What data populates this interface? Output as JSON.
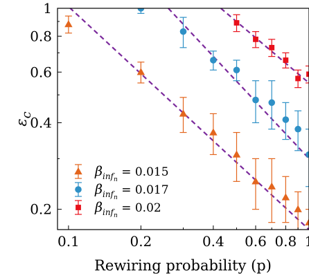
{
  "chart_data": {
    "type": "scatter",
    "title": "",
    "xlabel": "Rewiring probability (p)",
    "ylabel": "εc",
    "xscale": "log",
    "yscale": "log",
    "xlim": [
      0.09,
      1.0
    ],
    "ylim": [
      0.17,
      1.0
    ],
    "x_ticks": [
      0.1,
      0.2,
      0.4,
      0.6,
      0.8,
      1
    ],
    "x_tick_labels": [
      "0.1",
      "0.2",
      "0.4",
      "0.6",
      "0.8",
      "1"
    ],
    "y_ticks": [
      0.2,
      0.4,
      0.6,
      0.8,
      1
    ],
    "y_tick_labels": [
      "0.2",
      "0.4",
      "0.6",
      "0.8",
      "1"
    ],
    "grid": false,
    "legend_position": "bottom-left",
    "series": [
      {
        "name": "β_{inf_n} = 0.015",
        "legend_label": {
          "base": "β",
          "sub": "inf",
          "subsub": "n",
          "value": " = 0.015"
        },
        "color": "#e3651d",
        "marker": "triangle",
        "x": [
          0.1,
          0.2,
          0.3,
          0.4,
          0.5,
          0.6,
          0.7,
          0.8,
          0.9,
          1.0
        ],
        "y": [
          0.88,
          0.6,
          0.43,
          0.37,
          0.31,
          0.25,
          0.24,
          0.22,
          0.2,
          0.18
        ],
        "yerr": [
          0.06,
          0.05,
          0.06,
          0.06,
          0.06,
          0.05,
          0.06,
          0.04,
          0.03,
          0.02
        ],
        "fit": {
          "x": [
            0.09,
            1.0
          ],
          "y": [
            1.1,
            0.17
          ]
        }
      },
      {
        "name": "β_{inf_n} = 0.017",
        "legend_label": {
          "base": "β",
          "sub": "inf",
          "subsub": "n",
          "value": " = 0.017"
        },
        "color": "#2e90c6",
        "marker": "circle",
        "x": [
          0.2,
          0.3,
          0.4,
          0.5,
          0.6,
          0.7,
          0.8,
          0.9,
          1.0
        ],
        "y": [
          1.0,
          0.83,
          0.66,
          0.61,
          0.48,
          0.47,
          0.41,
          0.38,
          0.31
        ],
        "yerr": [
          0.04,
          0.1,
          0.05,
          0.05,
          0.08,
          0.09,
          0.06,
          0.06,
          0.07
        ],
        "fit": {
          "x": [
            0.26,
            1.0
          ],
          "y": [
            1.0,
            0.3
          ]
        }
      },
      {
        "name": "β_{inf_n} = 0.02",
        "legend_label": {
          "base": "β",
          "sub": "inf",
          "subsub": "n",
          "value": " = 0.02"
        },
        "color": "#e8101a",
        "marker": "square",
        "x": [
          0.5,
          0.6,
          0.7,
          0.8,
          0.9,
          1.0
        ],
        "y": [
          0.89,
          0.78,
          0.73,
          0.66,
          0.57,
          0.59
        ],
        "yerr": [
          0.06,
          0.05,
          0.05,
          0.04,
          0.04,
          0.04
        ],
        "fit": {
          "x": [
            0.43,
            1.0
          ],
          "y": [
            1.0,
            0.55
          ]
        }
      }
    ]
  }
}
